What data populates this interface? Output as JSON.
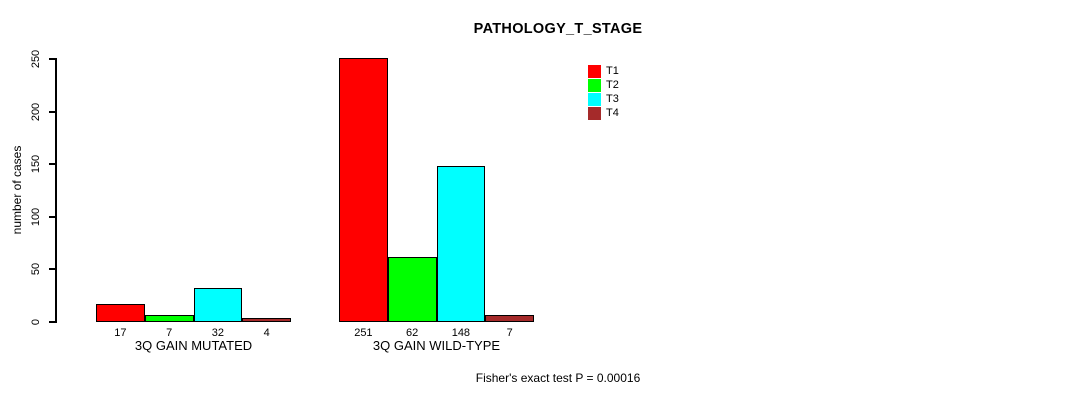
{
  "chart_data": {
    "type": "bar",
    "title": "PATHOLOGY_T_STAGE",
    "ylabel": "number of cases",
    "caption": "Fisher's exact test P = 0.00016",
    "ylim": [
      0,
      250
    ],
    "yticks": [
      0,
      50,
      100,
      150,
      200,
      250
    ],
    "grid": false,
    "legend_position": "top-right",
    "bar_value_labels": true,
    "categories": [
      "3Q GAIN MUTATED",
      "3Q GAIN WILD-TYPE"
    ],
    "series": [
      {
        "name": "T1",
        "color": "#ff0000",
        "values": [
          17,
          251
        ]
      },
      {
        "name": "T2",
        "color": "#00ff00",
        "values": [
          7,
          62
        ]
      },
      {
        "name": "T3",
        "color": "#00ffff",
        "values": [
          32,
          148
        ]
      },
      {
        "name": "T4",
        "color": "#a52a2a",
        "values": [
          4,
          7
        ]
      }
    ],
    "colors": {
      "background": "#ffffff",
      "axis": "#000000",
      "text": "#000000"
    }
  }
}
